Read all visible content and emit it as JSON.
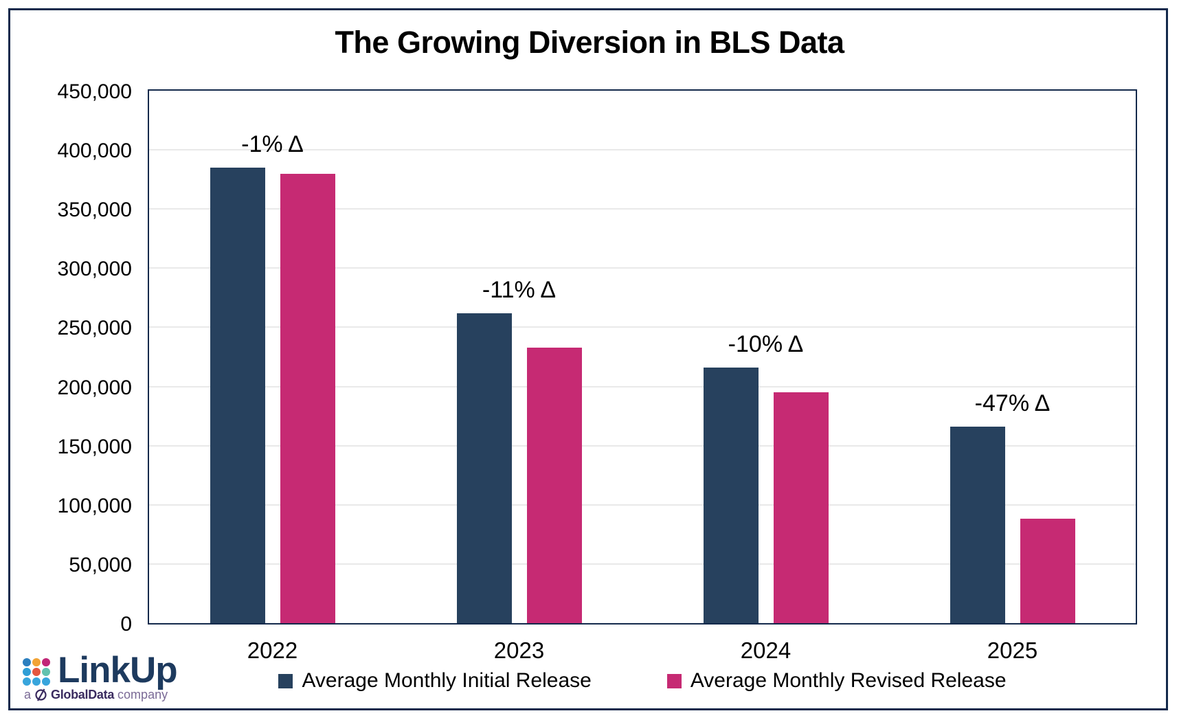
{
  "chart_data": {
    "type": "bar",
    "title": "The Growing Diversion in BLS Data",
    "categories": [
      "2022",
      "2023",
      "2024",
      "2025"
    ],
    "series": [
      {
        "name": "Average Monthly Initial Release",
        "color": "#27415e",
        "values": [
          385000,
          262000,
          216000,
          166000
        ]
      },
      {
        "name": "Average Monthly Revised Release",
        "color": "#c62a73",
        "values": [
          380000,
          233000,
          195000,
          88000
        ]
      }
    ],
    "bar_annotations": [
      "-1% Δ",
      "-11% Δ",
      "-10% Δ",
      "-47% Δ"
    ],
    "xlabel": "",
    "ylabel": "",
    "ylim": [
      0,
      450000
    ],
    "y_tick_values": [
      0,
      50000,
      100000,
      150000,
      200000,
      250000,
      300000,
      350000,
      400000,
      450000
    ],
    "y_tick_labels": [
      "0",
      "50,000",
      "100,000",
      "150,000",
      "200,000",
      "250,000",
      "300,000",
      "350,000",
      "400,000",
      "450,000"
    ],
    "grid": "horizontal",
    "legend_position": "bottom"
  },
  "colors": {
    "border": "#13294b",
    "gridline": "#e9e9e9",
    "initial_bar": "#27415e",
    "revised_bar": "#c62a73"
  },
  "logo": {
    "brand": "LinkUp",
    "tagline_prefix": "a",
    "tagline_brand": "GlobalData",
    "tagline_suffix": "company",
    "dot_colors": [
      "#2c7fbf",
      "#f2a335",
      "#c12677",
      "#2f9ed6",
      "#e4573f",
      "#62c2ae",
      "#38a5dc",
      "#38a5dc",
      "#38a5dc"
    ]
  }
}
